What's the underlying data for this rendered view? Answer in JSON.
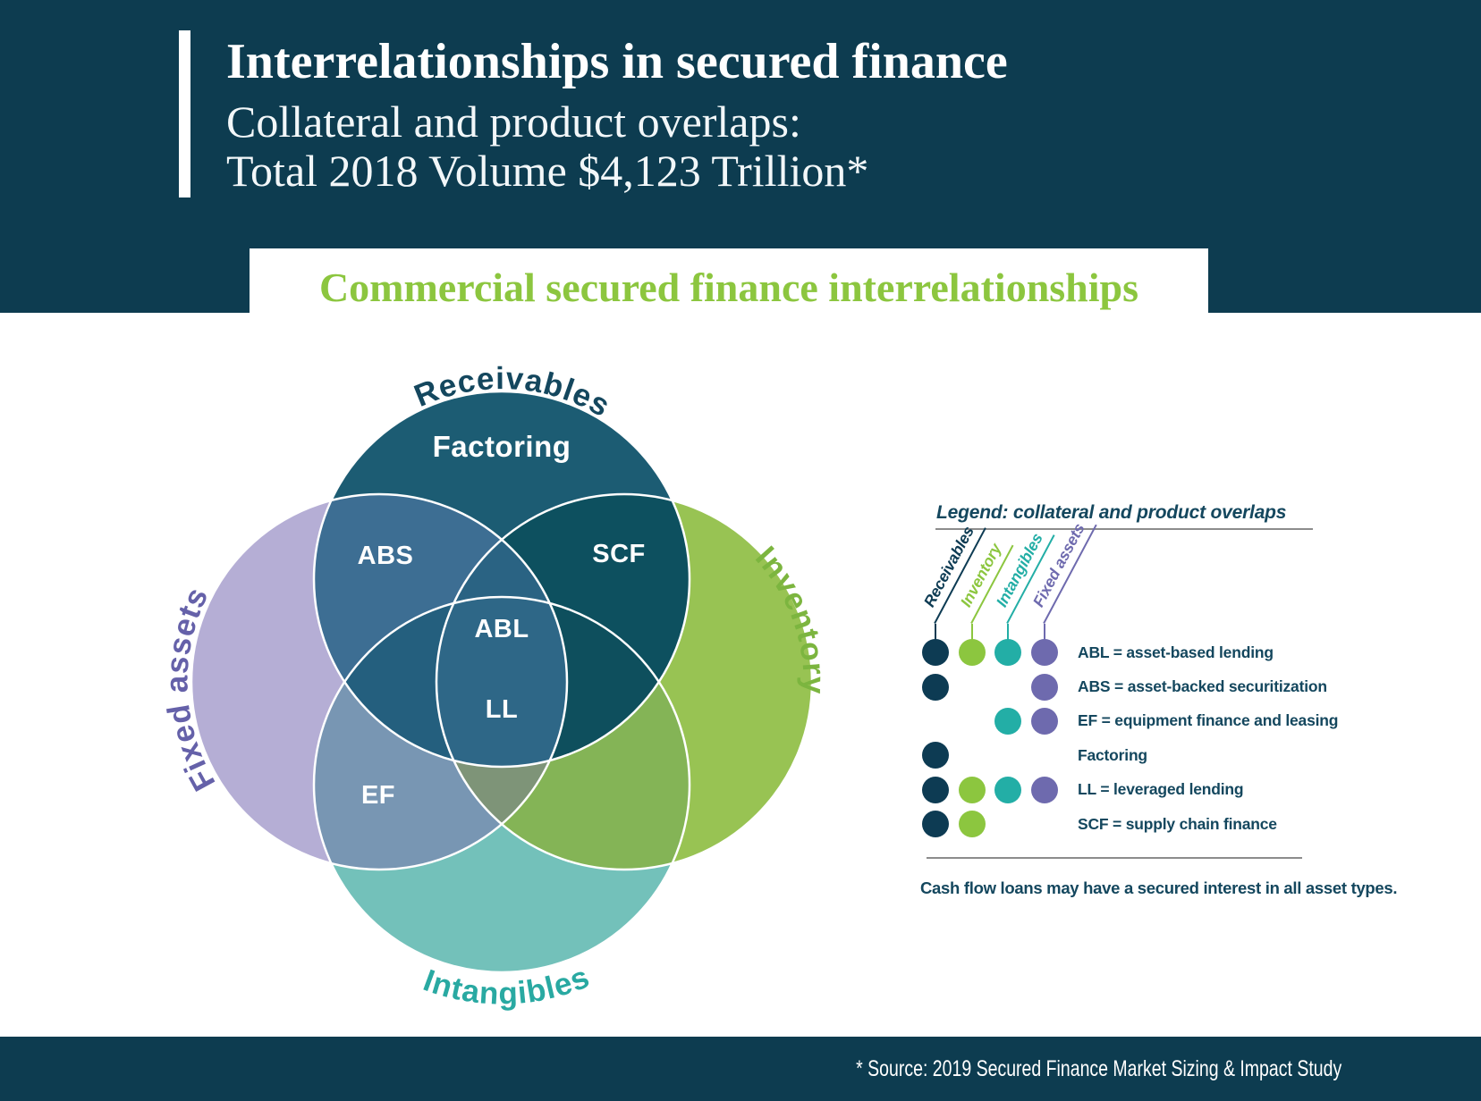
{
  "header": {
    "title": "Interrelationships in secured finance",
    "subtitle_line1": "Collateral and product overlaps:",
    "subtitle_line2": "Total 2018 Volume $4,123 Trillion*"
  },
  "banner": {
    "text": "Commercial secured finance interrelationships"
  },
  "venn": {
    "sets": [
      {
        "key": "receivables",
        "label": "Receivables",
        "color": "#1C5C73",
        "label_color": "#14475E"
      },
      {
        "key": "inventory",
        "label": "Inventory",
        "color": "#98C353",
        "label_color": "#7CB53F"
      },
      {
        "key": "intangibles",
        "label": "Intangibles",
        "color": "#73C1BA",
        "label_color": "#29A9A2"
      },
      {
        "key": "fixed_assets",
        "label": "Fixed assets",
        "color": "#B5AED5",
        "label_color": "#6561A9"
      }
    ],
    "regions": {
      "factoring": "Factoring",
      "abs": "ABS",
      "scf": "SCF",
      "abl": "ABL",
      "ll": "LL",
      "ef": "EF"
    },
    "overlap_colors": {
      "receivables_fixed": "#3D6E93",
      "receivables_inventory": "#0D505F",
      "fixed_intangibles": "#7896B3",
      "inventory_intangibles": "#84B456",
      "receivables_intangibles": "#245F7E",
      "fixed_inventory_receivables": "#2A6383",
      "fixed_inventory_intangibles": "#7E9478",
      "receivables_intangibles_inventory": "#0E4F5D",
      "center_all": "#2E6787"
    }
  },
  "legend": {
    "title": "Legend: collateral and product overlaps",
    "columns": [
      {
        "key": "receivables",
        "label": "Receivables",
        "color": "#0D3B53"
      },
      {
        "key": "inventory",
        "label": "Inventory",
        "color": "#8CC63F"
      },
      {
        "key": "intangibles",
        "label": "Intangibles",
        "color": "#23AEA6"
      },
      {
        "key": "fixed_assets",
        "label": "Fixed assets",
        "color": "#6E6AAE"
      }
    ],
    "rows": [
      {
        "label": "ABL = asset-based lending",
        "dots": [
          true,
          true,
          true,
          true
        ]
      },
      {
        "label": "ABS = asset-backed securitization",
        "dots": [
          true,
          false,
          false,
          true
        ]
      },
      {
        "label": "EF = equipment finance and leasing",
        "dots": [
          false,
          false,
          true,
          true
        ]
      },
      {
        "label": "Factoring",
        "dots": [
          true,
          false,
          false,
          false
        ]
      },
      {
        "label": "LL = leveraged lending",
        "dots": [
          true,
          true,
          true,
          true
        ]
      },
      {
        "label": "SCF = supply chain finance",
        "dots": [
          true,
          true,
          false,
          false
        ]
      }
    ],
    "note": "Cash flow loans may have a secured interest in all asset types."
  },
  "footer": {
    "source": "* Source: 2019 Secured Finance Market Sizing & Impact Study"
  },
  "colors": {
    "band": "#0D3C50",
    "banner_green": "#8CC63F",
    "legend_text": "#14475E",
    "rule_gray": "#8C8C8C"
  }
}
